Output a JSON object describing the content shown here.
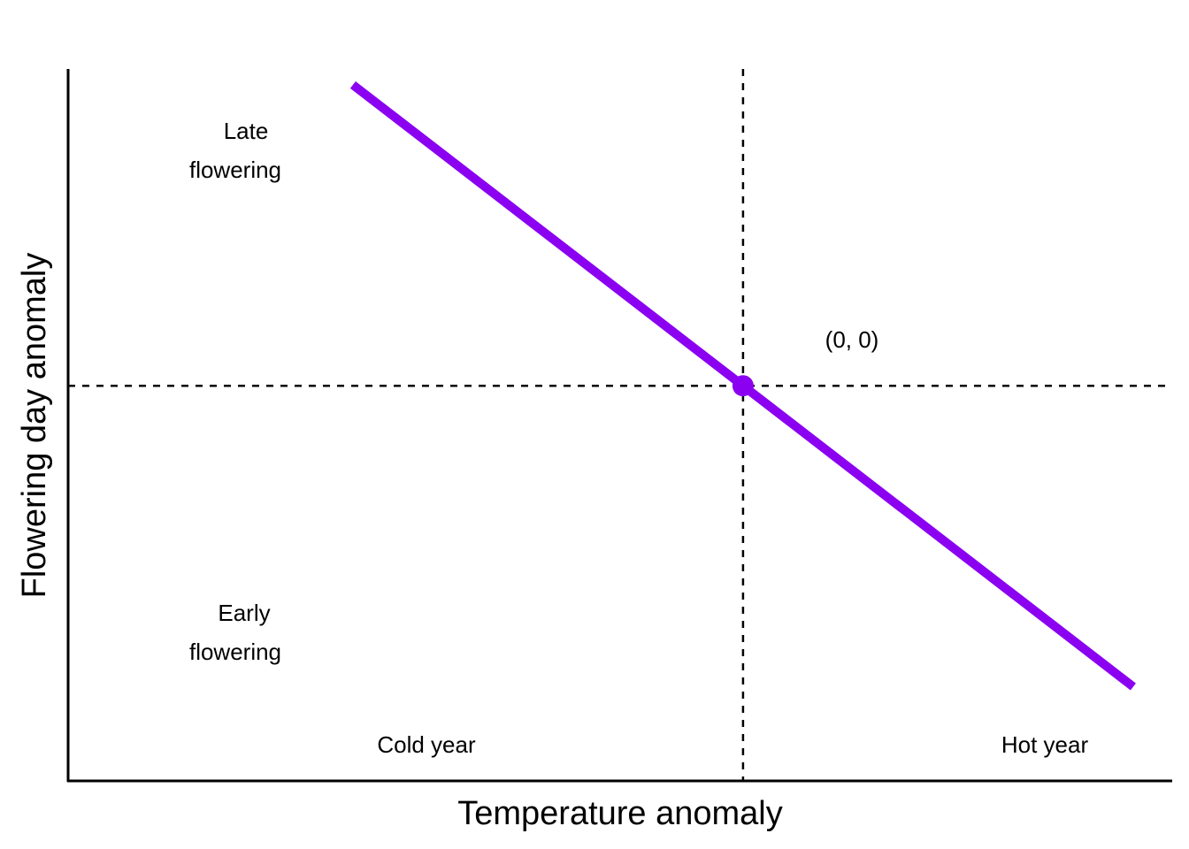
{
  "chart_data": {
    "type": "line",
    "title": "",
    "xlabel": "Temperature anomaly",
    "ylabel": "Flowering day anomaly",
    "xlim": [
      -1.73,
      1.1
    ],
    "ylim": [
      -1.0,
      0.8
    ],
    "grid": false,
    "ticks": false,
    "series": [
      {
        "x": [
          -1.0,
          1.0
        ],
        "y": [
          0.76,
          -0.76
        ],
        "color": "#8B00F0"
      }
    ],
    "origin_point": {
      "x": 0,
      "y": 0,
      "label": "(0, 0)"
    },
    "reference_lines": [
      {
        "orientation": "vertical",
        "value": 0,
        "style": "dashed"
      },
      {
        "orientation": "horizontal",
        "value": 0,
        "style": "dashed"
      }
    ],
    "annotations": {
      "late": [
        "Late",
        "flowering"
      ],
      "early": [
        "Early",
        "flowering"
      ],
      "cold": "Cold year",
      "hot": "Hot year"
    }
  }
}
